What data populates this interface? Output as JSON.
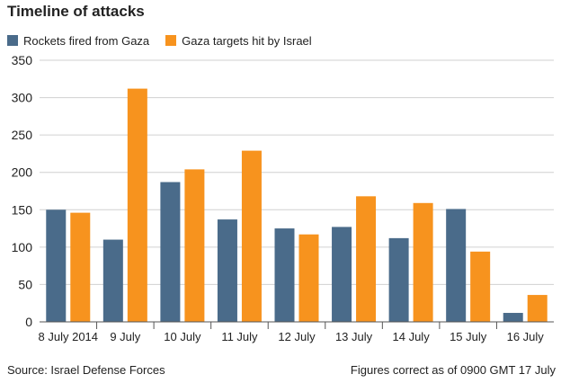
{
  "title": "Timeline of attacks",
  "source": "Source: Israel Defense Forces",
  "note": "Figures correct as of 0900 GMT 17 July",
  "colors": {
    "rockets": "#4a6b8a",
    "targets": "#f7931e",
    "grid": "#d0d0d0",
    "axis": "#555555"
  },
  "chart_data": {
    "type": "bar",
    "categories": [
      "8 July 2014",
      "9 July",
      "10 July",
      "11 July",
      "12 July",
      "13 July",
      "14 July",
      "15 July",
      "16 July"
    ],
    "series": [
      {
        "name": "Rockets fired from Gaza",
        "values": [
          150,
          110,
          187,
          137,
          125,
          127,
          112,
          151,
          12
        ]
      },
      {
        "name": "Gaza targets hit by Israel",
        "values": [
          146,
          312,
          204,
          229,
          117,
          168,
          159,
          94,
          36
        ]
      }
    ],
    "y_ticks": [
      0,
      50,
      100,
      150,
      200,
      250,
      300,
      350
    ],
    "ylim": [
      0,
      350
    ],
    "grid": true,
    "legend_position": "top-left"
  }
}
